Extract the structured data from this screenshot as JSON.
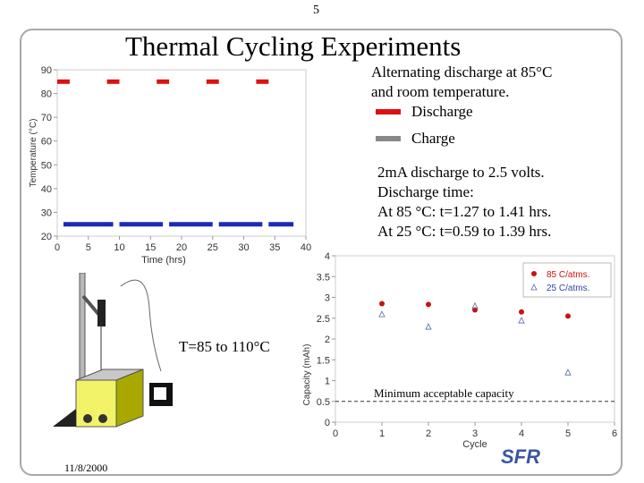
{
  "page_number": "5",
  "title": "Thermal Cycling Experiments",
  "description": {
    "line1": "Alternating discharge at 85°C",
    "line2": "and room temperature.",
    "legend_discharge": "Discharge",
    "legend_charge": "Charge",
    "discharge_color": "#dd1111",
    "charge_color": "#888888"
  },
  "specs": {
    "line1": "2mA discharge to 2.5 volts.",
    "line2": "Discharge time:",
    "line3": "At 85 °C: t=1.27 to 1.41 hrs.",
    "line4": "At 25 °C: t=0.59 to 1.39 hrs."
  },
  "temp_label": "T=85 to 110°C",
  "min_capacity_label": "Minimum acceptable capacity",
  "date": "11/8/2000",
  "logo_text": "SFR",
  "chart_data": [
    {
      "type": "line",
      "xlabel": "Time (hrs)",
      "ylabel": "Temperature (°C)",
      "xlim": [
        0,
        40
      ],
      "ylim": [
        20,
        90
      ],
      "xticks": [
        0,
        5,
        10,
        15,
        20,
        25,
        30,
        35,
        40
      ],
      "yticks": [
        20,
        30,
        40,
        50,
        60,
        70,
        80,
        90
      ],
      "series": [
        {
          "name": "Discharge",
          "color": "#dd1111",
          "segments": [
            [
              0,
              2,
              85
            ],
            [
              8,
              10,
              85
            ],
            [
              16,
              18,
              85
            ],
            [
              24,
              26,
              85
            ],
            [
              32,
              34,
              85
            ]
          ]
        },
        {
          "name": "Discharge",
          "color": "#1a2ab8",
          "segments": [
            [
              1,
              9,
              25
            ],
            [
              10,
              17,
              25
            ],
            [
              18,
              25,
              25
            ],
            [
              26,
              33,
              25
            ],
            [
              34,
              38,
              25
            ]
          ]
        }
      ]
    },
    {
      "type": "scatter",
      "xlabel": "Cycle",
      "ylabel": "Capacity (mAh)",
      "xlim": [
        0,
        6
      ],
      "ylim": [
        0,
        4
      ],
      "xticks": [
        0,
        1,
        2,
        3,
        4,
        5,
        6
      ],
      "yticks": [
        0,
        0.5,
        1,
        1.5,
        2,
        2.5,
        3,
        3.5,
        4
      ],
      "series": [
        {
          "name": "85 C/atms.",
          "marker": "circle",
          "color": "#cc1111",
          "x": [
            1,
            2,
            3,
            4,
            5
          ],
          "y": [
            2.85,
            2.83,
            2.7,
            2.65,
            2.55
          ]
        },
        {
          "name": "25 C/atms.",
          "marker": "triangle",
          "color": "#5566aa",
          "x": [
            1,
            2,
            3,
            4,
            5
          ],
          "y": [
            2.6,
            2.3,
            2.8,
            2.45,
            1.2
          ]
        }
      ],
      "reference_line": {
        "y": 0.5,
        "label": "Minimum acceptable capacity"
      }
    }
  ]
}
